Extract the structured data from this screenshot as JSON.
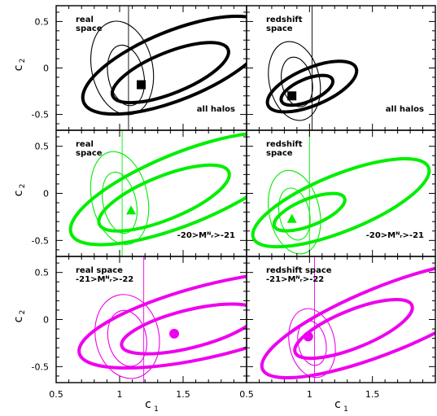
{
  "chart_data": [
    {
      "type": "contour",
      "title": "real space",
      "label_lines": [
        "real",
        "space"
      ],
      "sample_label": "all halos",
      "color": "#000000",
      "marker": "square",
      "xlim": [
        0.5,
        2.0
      ],
      "ylim": [
        -0.67,
        0.67
      ],
      "xticks": [
        0.5,
        1,
        1.5
      ],
      "yticks": [
        -0.5,
        0,
        0.5
      ],
      "best_fit": {
        "x": 1.17,
        "y": -0.18
      },
      "reference_line_x": 1.07,
      "inner_contour": {
        "cx": 1.02,
        "cy": 0.0,
        "rx": 0.24,
        "ry": 0.51,
        "angle_deg": 12
      },
      "inner_contour_small": {
        "cx": 1.05,
        "cy": -0.08,
        "rx": 0.14,
        "ry": 0.33,
        "angle_deg": 12
      },
      "outer_contour": {
        "cx": 1.44,
        "cy": 0.03,
        "rx": 0.78,
        "ry": 0.37,
        "angle_deg": 22
      },
      "outer_contour_small": {
        "cx": 1.4,
        "cy": -0.05,
        "rx": 0.49,
        "ry": 0.22,
        "angle_deg": 22
      }
    },
    {
      "type": "contour",
      "title": "redshift space",
      "label_lines": [
        "redshift",
        "space"
      ],
      "sample_label": "all halos",
      "color": "#000000",
      "marker": "square",
      "xlim": [
        0.5,
        2.0
      ],
      "ylim": [
        -0.67,
        0.67
      ],
      "xticks": [
        0.5,
        1,
        1.5
      ],
      "yticks": [
        -0.5,
        0,
        0.5
      ],
      "best_fit": {
        "x": 0.86,
        "y": -0.3
      },
      "reference_line_x": 1.02,
      "inner_contour": {
        "cx": 0.88,
        "cy": -0.14,
        "rx": 0.2,
        "ry": 0.43,
        "angle_deg": 12
      },
      "inner_contour_small": {
        "cx": 0.9,
        "cy": -0.15,
        "rx": 0.12,
        "ry": 0.27,
        "angle_deg": 12
      },
      "outer_contour": {
        "cx": 1.02,
        "cy": -0.2,
        "rx": 0.38,
        "ry": 0.2,
        "angle_deg": 23
      },
      "outer_contour_small": {
        "cx": 0.98,
        "cy": -0.24,
        "rx": 0.22,
        "ry": 0.12,
        "angle_deg": 23
      }
    },
    {
      "type": "contour",
      "title": "real space",
      "label_lines": [
        "real",
        "space"
      ],
      "sample_label": "-20>Mᴺᵣ>-21",
      "color": "#00ee00",
      "marker": "triangle",
      "xlim": [
        0.5,
        2.0
      ],
      "ylim": [
        -0.67,
        0.67
      ],
      "xticks": [
        0.5,
        1,
        1.5
      ],
      "yticks": [
        -0.5,
        0,
        0.5
      ],
      "best_fit": {
        "x": 1.09,
        "y": -0.18
      },
      "reference_line_x": 1.02,
      "inner_contour": {
        "cx": 1.0,
        "cy": -0.05,
        "rx": 0.22,
        "ry": 0.5,
        "angle_deg": 12
      },
      "inner_contour_small": {
        "cx": 1.0,
        "cy": -0.1,
        "rx": 0.13,
        "ry": 0.33,
        "angle_deg": 12
      },
      "outer_contour": {
        "cx": 1.5,
        "cy": 0.05,
        "rx": 0.95,
        "ry": 0.38,
        "angle_deg": 22
      },
      "outer_contour_small": {
        "cx": 1.35,
        "cy": -0.05,
        "rx": 0.55,
        "ry": 0.23,
        "angle_deg": 22
      }
    },
    {
      "type": "contour",
      "title": "redshift space",
      "label_lines": [
        "redshift",
        "space"
      ],
      "sample_label": "-20>Mᴺᵣ>-21",
      "color": "#00ee00",
      "marker": "triangle",
      "xlim": [
        0.5,
        2.0
      ],
      "ylim": [
        -0.67,
        0.67
      ],
      "xticks": [
        0.5,
        1,
        1.5
      ],
      "yticks": [
        -0.5,
        0,
        0.5
      ],
      "best_fit": {
        "x": 0.86,
        "y": -0.27
      },
      "reference_line_x": 1.0,
      "inner_contour": {
        "cx": 0.88,
        "cy": -0.2,
        "rx": 0.2,
        "ry": 0.45,
        "angle_deg": 12
      },
      "inner_contour_small": {
        "cx": 0.88,
        "cy": -0.22,
        "rx": 0.12,
        "ry": 0.28,
        "angle_deg": 12
      },
      "outer_contour": {
        "cx": 1.25,
        "cy": -0.1,
        "rx": 0.75,
        "ry": 0.3,
        "angle_deg": 22
      },
      "outer_contour_small": {
        "cx": 1.0,
        "cy": -0.2,
        "rx": 0.3,
        "ry": 0.14,
        "angle_deg": 22
      }
    },
    {
      "type": "contour",
      "title": "real space",
      "label_lines": [
        "real space",
        "-21>Mᴺᵣ>-22"
      ],
      "sample_label": "",
      "color": "#ee00ee",
      "marker": "circle",
      "xlim": [
        0.5,
        2.0
      ],
      "ylim": [
        -0.67,
        0.67
      ],
      "xticks": [
        0.5,
        1,
        1.5
      ],
      "yticks": [
        -0.5,
        0,
        0.5
      ],
      "best_fit": {
        "x": 1.43,
        "y": -0.15
      },
      "reference_line_x": 1.19,
      "inner_contour": {
        "cx": 1.06,
        "cy": -0.18,
        "rx": 0.25,
        "ry": 0.45,
        "angle_deg": 12
      },
      "inner_contour_small": {
        "cx": 1.06,
        "cy": -0.2,
        "rx": 0.15,
        "ry": 0.3,
        "angle_deg": 12
      },
      "outer_contour": {
        "cx": 1.75,
        "cy": 0.0,
        "rx": 1.1,
        "ry": 0.38,
        "angle_deg": 14
      },
      "outer_contour_small": {
        "cx": 1.55,
        "cy": -0.1,
        "rx": 0.55,
        "ry": 0.2,
        "angle_deg": 14
      }
    },
    {
      "type": "contour",
      "title": "redshift space",
      "label_lines": [
        "redshift space",
        "-21>Mᴺᵣ>-22"
      ],
      "sample_label": "",
      "color": "#ee00ee",
      "marker": "circle",
      "xlim": [
        0.5,
        2.0
      ],
      "ylim": [
        -0.67,
        0.67
      ],
      "xticks": [
        0.5,
        1,
        1.5
      ],
      "yticks": [
        -0.5,
        0,
        0.5
      ],
      "best_fit": {
        "x": 0.99,
        "y": -0.18
      },
      "reference_line_x": 1.04,
      "inner_contour": {
        "cx": 1.02,
        "cy": -0.25,
        "rx": 0.18,
        "ry": 0.37,
        "angle_deg": 12
      },
      "inner_contour_small": {
        "cx": 1.02,
        "cy": -0.25,
        "rx": 0.11,
        "ry": 0.24,
        "angle_deg": 12
      },
      "outer_contour": {
        "cx": 1.6,
        "cy": 0.0,
        "rx": 1.05,
        "ry": 0.35,
        "angle_deg": 22
      },
      "outer_contour_small": {
        "cx": 1.35,
        "cy": -0.1,
        "rx": 0.5,
        "ry": 0.2,
        "angle_deg": 22
      }
    }
  ],
  "axes": {
    "xlabel": "c",
    "xlabel_sub": "1",
    "ylabel": "c",
    "ylabel_sub": "2",
    "xtick_labels": [
      "0.5",
      "1",
      "1.5"
    ],
    "ytick_labels": [
      "-0.5",
      "0",
      "0.5"
    ]
  }
}
